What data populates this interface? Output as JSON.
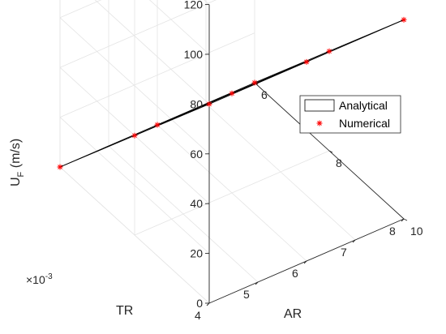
{
  "chart_data": {
    "type": "line",
    "view": "3d-surface-mesh",
    "xlabel": "AR",
    "ylabel": "TR",
    "zlabel_main": "U",
    "zlabel_sub": "F",
    "zlabel_unit": " (m/s)",
    "y_exponent_base": "×10",
    "y_exponent_power": "-3",
    "xlim": [
      4,
      8
    ],
    "ylim": [
      6,
      10
    ],
    "zlim": [
      0,
      120
    ],
    "x_ticks": [
      "4",
      "5",
      "6",
      "7",
      "8"
    ],
    "y_ticks": [
      "6",
      "8",
      "10"
    ],
    "z_ticks": [
      "0",
      "20",
      "40",
      "60",
      "80",
      "100",
      "120"
    ],
    "grid": true,
    "legend_position": "right",
    "legend": [
      {
        "name": "Analytical",
        "style": "line",
        "color": "#000000"
      },
      {
        "name": "Numerical",
        "style": "marker",
        "marker": "*",
        "color": "#ff0000"
      }
    ],
    "AR": [
      4,
      6,
      8
    ],
    "TR": [
      6,
      8,
      10
    ],
    "UF_rows_by_TR": [
      {
        "TR": 10,
        "values": [
          80,
          80,
          80
        ]
      },
      {
        "TR": 8,
        "values": [
          40,
          40,
          40
        ]
      },
      {
        "TR": 6,
        "values": [
          0,
          0,
          0
        ]
      }
    ]
  }
}
